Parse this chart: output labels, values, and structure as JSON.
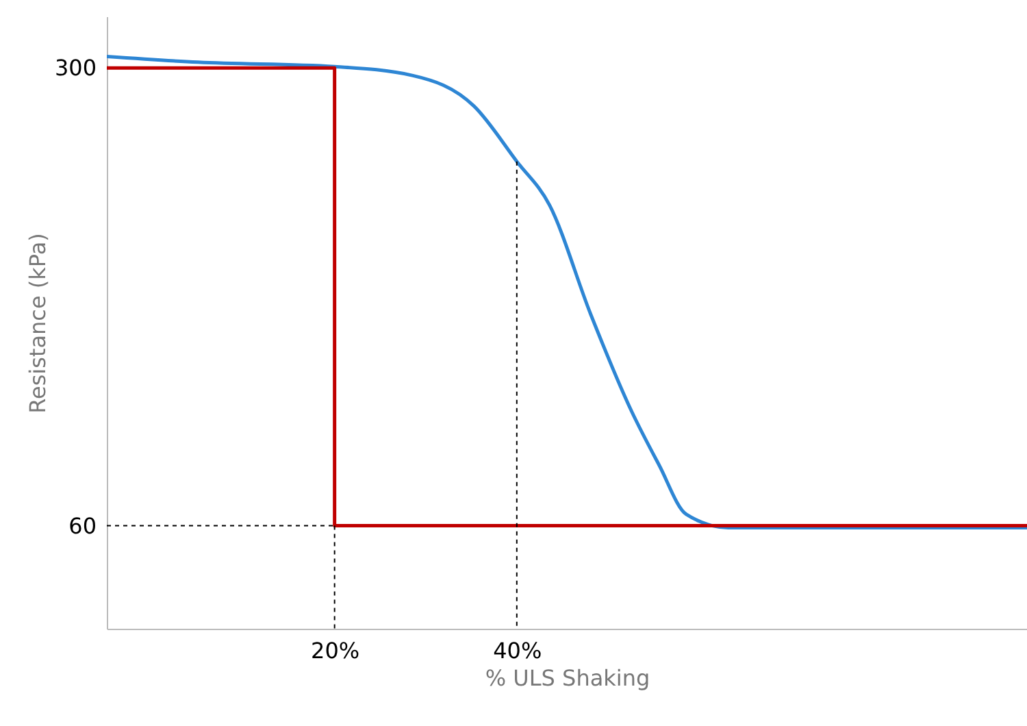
{
  "chart_data": {
    "type": "line",
    "xlabel": "% ULS Shaking",
    "ylabel": "Resistance (kPa)",
    "xlim": [
      -5,
      96
    ],
    "ylim": [
      6,
      327
    ],
    "xticks": [
      {
        "value": 20,
        "label": "20%"
      },
      {
        "value": 40,
        "label": "40%"
      }
    ],
    "yticks": [
      60,
      300
    ],
    "grid": false,
    "series": [
      {
        "color": "#2e86d4",
        "x": [
          -5,
          5,
          20,
          28.6,
          35.3,
          40,
          43.6,
          48.1,
          52.6,
          55.6,
          58.6,
          63.2,
          96
        ],
        "values": [
          306,
          303,
          300.7,
          296,
          280,
          251,
          228,
          171,
          120,
          92,
          66,
          59,
          59
        ]
      },
      {
        "color": "#c00000",
        "x": [
          -5,
          20,
          20,
          96
        ],
        "values": [
          300,
          300,
          60,
          60
        ]
      },
      {
        "color": "#000000",
        "line_style": "dashed",
        "x": [
          -5,
          20
        ],
        "values": [
          60,
          60
        ]
      },
      {
        "color": "#000000",
        "line_style": "dashed",
        "x": [
          20,
          20
        ],
        "values": [
          60,
          6
        ]
      },
      {
        "color": "#000000",
        "line_style": "dashed",
        "x": [
          40,
          40
        ],
        "values": [
          251,
          6
        ]
      }
    ]
  }
}
